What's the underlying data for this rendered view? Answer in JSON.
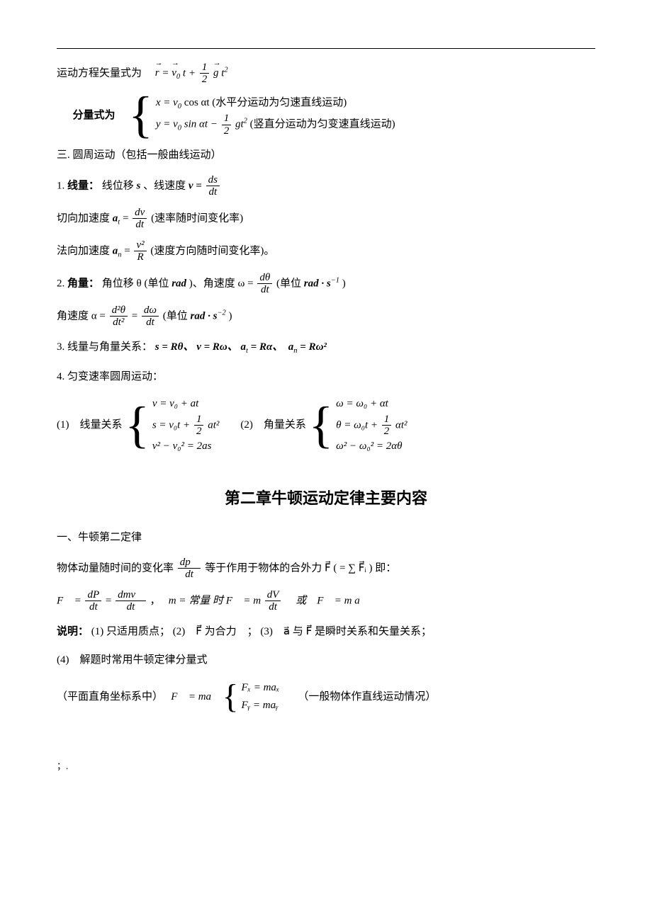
{
  "line1_prefix": "运动方程矢量式为　",
  "eq1_r": "r",
  "eq1_eq": " = ",
  "eq1_v0": "v",
  "eq1_v0sub": "0",
  "eq1_t": "t + ",
  "eq1_half_num": "1",
  "eq1_half_den": "2",
  "eq1_g": "g",
  "eq1_t2": "t",
  "eq1_t2sup": "2",
  "line2_label": "分量式为",
  "line2_x": "x = v",
  "line2_x_sub0": "0",
  "line2_x_rest": " cos αt (水平分运动为匀速直线运动)",
  "line2_y": "y = v",
  "line2_y_sub0": "0",
  "line2_y_sin": " sin αt − ",
  "line2_y_num": "1",
  "line2_y_den": "2",
  "line2_y_g": "gt",
  "line2_y_sup2": "2",
  "line2_y_note": " (竖直分运动为匀变速直线运动)",
  "sec3_title": "三. 圆周运动（包括一般曲线运动）",
  "s3_1_label": "1. ",
  "s3_1_bold": "线量：",
  "s3_1_text": "线位移 ",
  "s3_1_s": "s",
  "s3_1_sep": " 、线速度 ",
  "s3_1_v": "v = ",
  "s3_1_num": "ds",
  "s3_1_den": "dt",
  "s3_at_label": "切向加速度 ",
  "s3_at_a": "a",
  "s3_at_sub": "t",
  "s3_at_eq": " = ",
  "s3_at_num": "dv",
  "s3_at_den": "dt",
  "s3_at_note": " (速率随时间变化率)",
  "s3_an_label": "法向加速度 ",
  "s3_an_a": "a",
  "s3_an_sub": "n",
  "s3_an_eq": " = ",
  "s3_an_num": "v²",
  "s3_an_den": "R",
  "s3_an_note": " (速度方向随时间变化率)。",
  "s3_2_label": "2. ",
  "s3_2_bold": "角量：",
  "s3_2_text1": "角位移 θ (单位 ",
  "s3_2_rad": "rad",
  "s3_2_text2": " )、角速度 ω = ",
  "s3_2_num": "dθ",
  "s3_2_den": "dt",
  "s3_2_text3": " (单位 ",
  "s3_2_rads": "rad · s",
  "s3_2_sup": "−1",
  "s3_2_text4": " )",
  "s3_alpha_label": "角速度 α = ",
  "s3_alpha_num1": "d²θ",
  "s3_alpha_den1": "dt²",
  "s3_alpha_eq": " = ",
  "s3_alpha_num2": "dω",
  "s3_alpha_den2": "dt",
  "s3_alpha_note1": " (单位 ",
  "s3_alpha_rads2": "rad · s",
  "s3_alpha_sup": "−2",
  "s3_alpha_note2": " )",
  "s3_3_label": "3. 线量与角量关系：",
  "s3_3_eq": "s = Rθ、 v = Rω、 a",
  "s3_3_sub_t": "t",
  "s3_3_eq2": " = Rα、　a",
  "s3_3_sub_n": "n",
  "s3_3_eq3": " = Rω²",
  "s3_4_label": "4. 匀变速率圆周运动：",
  "s3_4_1_label": "(1)　线量关系",
  "s3_4_1_eq1": "v = v₀ + at",
  "s3_4_1_eq2_a": "s = v₀t + ",
  "s3_4_1_eq2_num": "1",
  "s3_4_1_eq2_den": "2",
  "s3_4_1_eq2_b": "at²",
  "s3_4_1_eq3": "v² − v₀² = 2as",
  "s3_4_2_label": "(2)　角量关系",
  "s3_4_2_eq1": "ω = ω₀ + αt",
  "s3_4_2_eq2_a": "θ = ω₀t + ",
  "s3_4_2_eq2_num": "1",
  "s3_4_2_eq2_den": "2",
  "s3_4_2_eq2_b": "αt²",
  "s3_4_2_eq3": "ω² − ω₀² = 2αθ",
  "chapter_title": "第二章牛顿运动定律主要内容",
  "ch2_sec1": "一、牛顿第二定律",
  "ch2_p1_a": "物体动量随时间的变化率 ",
  "ch2_p1_num": "dp⃗",
  "ch2_p1_den": "dt",
  "ch2_p1_b": " 等于作用于物体的合外力 F⃗  ( = ∑ F⃗ᵢ )  即：",
  "ch2_eq_F": "F⃗ = ",
  "ch2_eq_num1": "dP",
  "ch2_eq_den1": "dt",
  "ch2_eq_eq": " = ",
  "ch2_eq_num2": "dmv⃗",
  "ch2_eq_den2": "dt",
  "ch2_eq_comma": " ，　",
  "ch2_eq_m": "m = 常量 时 F⃗ = m ",
  "ch2_eq_num3": "dV",
  "ch2_eq_den3": "dt",
  "ch2_eq_or": " 　或　F⃗ = m a⃗",
  "ch2_note_label": "说明：",
  "ch2_note1": "(1) 只适用质点；",
  "ch2_note2": "(2)　F⃗ 为合力　；",
  "ch2_note3": "(3)　a⃗ 与 F⃗ 是瞬时关系和矢量关系；",
  "ch2_note4": "(4)　解题时常用牛顿定律分量式",
  "ch2_plane_label": "（平面直角坐标系中）　",
  "ch2_plane_F": "F⃗ = ma⃗",
  "ch2_plane_eq1": "Fₓ = maₓ",
  "ch2_plane_eq2": "Fᵧ = maᵧ",
  "ch2_plane_note": "　　（一般物体作直线运动情况）",
  "footer": "；."
}
